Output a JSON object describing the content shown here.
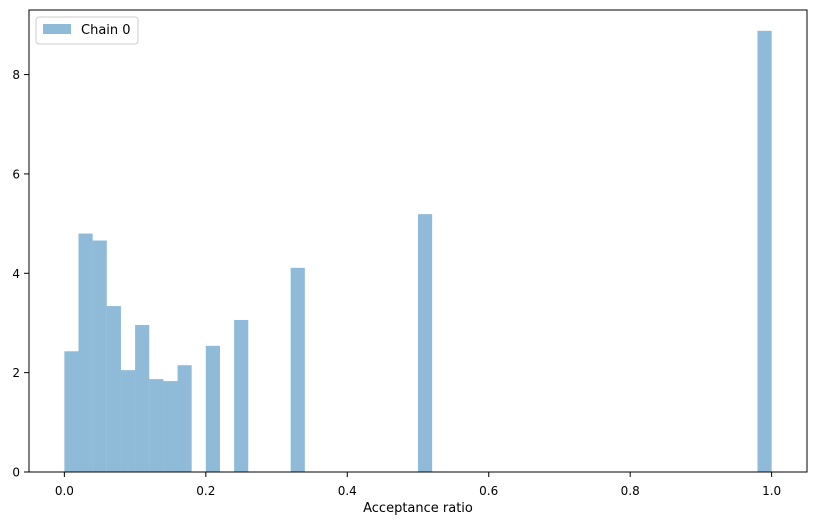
{
  "chart_data": {
    "type": "bar",
    "title": "",
    "xlabel": "Acceptance ratio",
    "ylabel": "",
    "xlim": [
      -0.05,
      1.05
    ],
    "ylim": [
      0,
      9.3
    ],
    "xticks": [
      {
        "value": 0.0,
        "label": "0.0"
      },
      {
        "value": 0.2,
        "label": "0.2"
      },
      {
        "value": 0.4,
        "label": "0.4"
      },
      {
        "value": 0.6,
        "label": "0.6"
      },
      {
        "value": 0.8,
        "label": "0.8"
      },
      {
        "value": 1.0,
        "label": "1.0"
      }
    ],
    "yticks": [
      {
        "value": 0,
        "label": "0"
      },
      {
        "value": 2,
        "label": "2"
      },
      {
        "value": 4,
        "label": "4"
      },
      {
        "value": 6,
        "label": "6"
      },
      {
        "value": 8,
        "label": "8"
      }
    ],
    "grid": false,
    "legend": {
      "placement": "top-left",
      "entries": [
        "Chain 0"
      ]
    },
    "series": [
      {
        "name": "Chain 0",
        "color": "#1f77b4",
        "opacity": 0.5,
        "bin_width": 0.02,
        "bins": [
          {
            "x0": 0.0,
            "value": 2.43
          },
          {
            "x0": 0.02,
            "value": 4.8
          },
          {
            "x0": 0.04,
            "value": 4.66
          },
          {
            "x0": 0.06,
            "value": 3.34
          },
          {
            "x0": 0.08,
            "value": 2.05
          },
          {
            "x0": 0.1,
            "value": 2.96
          },
          {
            "x0": 0.12,
            "value": 1.87
          },
          {
            "x0": 0.14,
            "value": 1.83
          },
          {
            "x0": 0.16,
            "value": 2.15
          },
          {
            "x0": 0.2,
            "value": 2.54
          },
          {
            "x0": 0.24,
            "value": 3.06
          },
          {
            "x0": 0.32,
            "value": 4.11
          },
          {
            "x0": 0.5,
            "value": 5.19
          },
          {
            "x0": 0.98,
            "value": 8.88
          }
        ]
      }
    ]
  }
}
